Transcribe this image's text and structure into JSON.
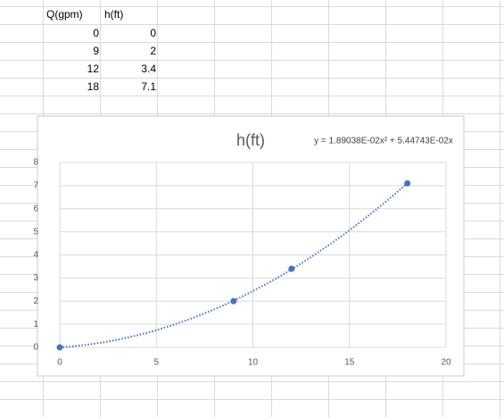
{
  "table": {
    "header": [
      "Q(gpm)",
      "h(ft)"
    ],
    "rows": [
      [
        0,
        0
      ],
      [
        9,
        2
      ],
      [
        12,
        3.4
      ],
      [
        18,
        7.1
      ]
    ]
  },
  "chart_data": {
    "type": "scatter",
    "title": "h(ft)",
    "series": [
      {
        "name": "h(ft)",
        "color": "#4472c4",
        "x": [
          0,
          9,
          12,
          18
        ],
        "values": [
          0,
          2,
          3.4,
          7.1
        ]
      }
    ],
    "trendline": {
      "label": "y = 1.89038E-02x² + 5.44743E-02x",
      "coefficients": [
        0.0189038,
        0.0544743
      ],
      "style": "dotted"
    },
    "xlim": [
      0,
      20
    ],
    "xticks": [
      0,
      5,
      10,
      15,
      20
    ],
    "ylim": [
      0,
      8
    ],
    "yticks": [
      0,
      1,
      2,
      3,
      4,
      5,
      6,
      7,
      8
    ],
    "grid": true
  }
}
